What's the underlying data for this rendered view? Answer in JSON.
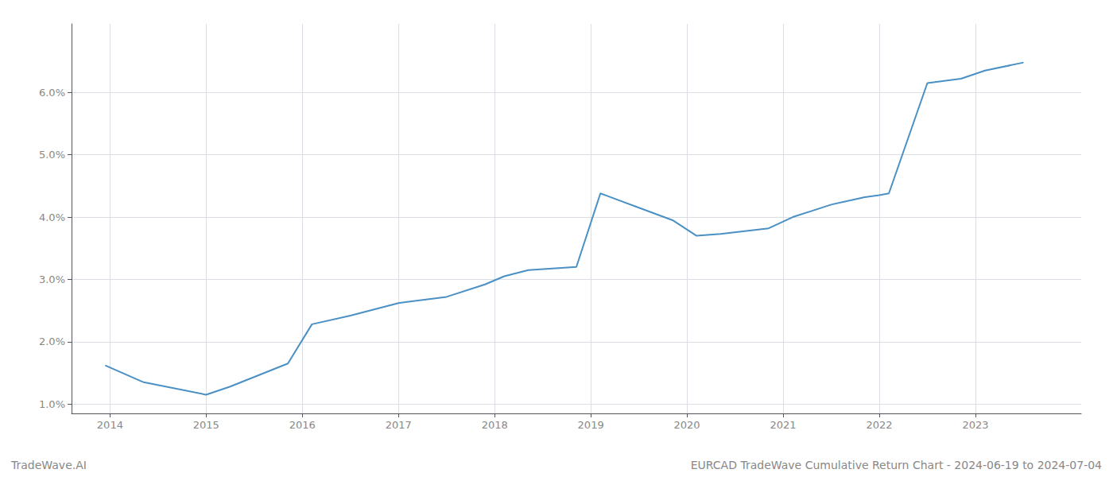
{
  "chart_data": {
    "type": "line",
    "x": [
      2013.95,
      2014.35,
      2015.0,
      2015.25,
      2015.85,
      2016.1,
      2016.5,
      2017.0,
      2017.5,
      2017.9,
      2018.1,
      2018.35,
      2018.85,
      2019.1,
      2019.5,
      2019.85,
      2020.1,
      2020.35,
      2020.85,
      2021.1,
      2021.5,
      2021.85,
      2022.0,
      2022.1,
      2022.5,
      2022.85,
      2023.1,
      2023.5
    ],
    "values": [
      1.62,
      1.35,
      1.15,
      1.28,
      1.65,
      2.28,
      2.42,
      2.62,
      2.72,
      2.92,
      3.05,
      3.15,
      3.2,
      4.38,
      4.15,
      3.95,
      3.7,
      3.73,
      3.82,
      4.0,
      4.2,
      4.32,
      4.35,
      4.38,
      6.15,
      6.22,
      6.35,
      6.48
    ],
    "color": "#4a90c4",
    "xlim": [
      2013.6,
      2024.1
    ],
    "ylim": [
      0.85,
      7.1
    ],
    "xticks": [
      2014,
      2015,
      2016,
      2017,
      2018,
      2019,
      2020,
      2021,
      2022,
      2023
    ],
    "yticks": [
      {
        "value": 1.0,
        "label": "1.0%"
      },
      {
        "value": 2.0,
        "label": "2.0%"
      },
      {
        "value": 3.0,
        "label": "3.0%"
      },
      {
        "value": 4.0,
        "label": "4.0%"
      },
      {
        "value": 5.0,
        "label": "5.0%"
      },
      {
        "value": 6.0,
        "label": "6.0%"
      }
    ],
    "grid": true,
    "annotations": [
      "TradeWave.AI",
      "EURCAD TradeWave Cumulative Return Chart - 2024-06-19 to 2024-07-04"
    ]
  }
}
